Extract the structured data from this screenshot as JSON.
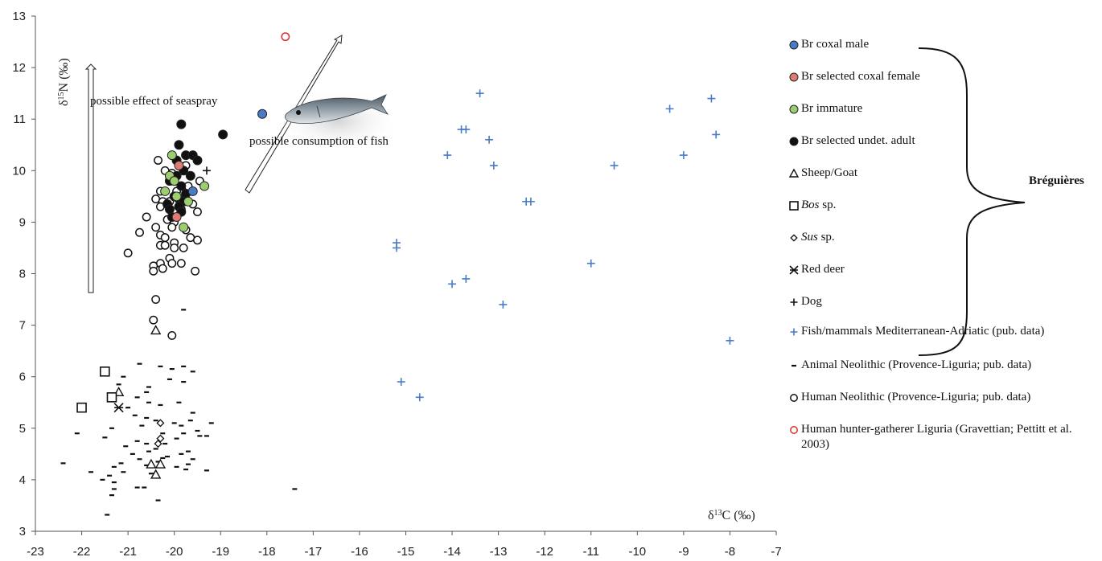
{
  "chart_data": {
    "type": "scatter",
    "xlabel_main": "δ",
    "xlabel_sup": "13",
    "xlabel_rest": "C (‰)",
    "ylabel_main": "δ",
    "ylabel_sup": "15",
    "ylabel_rest": "N (‰)",
    "xlim": [
      -23,
      -7
    ],
    "ylim": [
      3,
      13
    ],
    "xticks": [
      -23,
      -22,
      -21,
      -20,
      -19,
      -18,
      -17,
      -16,
      -15,
      -14,
      -13,
      -12,
      -11,
      -10,
      -9,
      -8,
      -7
    ],
    "yticks": [
      3,
      4,
      5,
      6,
      7,
      8,
      9,
      10,
      11,
      12,
      13
    ],
    "grid": false,
    "legend_position": "right",
    "annotations": {
      "seaspray": "possible effect of seaspray",
      "fish": "possible consumption of fish"
    },
    "group_label": "Bréguières",
    "series": [
      {
        "name": "Br coxal male",
        "marker": "circle-filled",
        "color": "#4a7bc6",
        "points": [
          [
            -18.1,
            11.1
          ],
          [
            -19.6,
            9.6
          ]
        ]
      },
      {
        "name": "Br selected coxal female",
        "marker": "circle-filled",
        "color": "#e07b73",
        "points": [
          [
            -19.9,
            10.1
          ],
          [
            -19.95,
            9.1
          ]
        ]
      },
      {
        "name": "Br immature",
        "marker": "circle-filled",
        "color": "#9ccd6e",
        "points": [
          [
            -20.05,
            10.3
          ],
          [
            -20.1,
            9.9
          ],
          [
            -20.0,
            9.8
          ],
          [
            -20.2,
            9.6
          ],
          [
            -19.35,
            9.7
          ],
          [
            -19.8,
            8.9
          ],
          [
            -19.95,
            9.5
          ],
          [
            -19.7,
            9.4
          ]
        ]
      },
      {
        "name": "Br selected undet. adult",
        "marker": "circle-filled",
        "color": "#111111",
        "points": [
          [
            -19.85,
            10.9
          ],
          [
            -18.95,
            10.7
          ],
          [
            -19.9,
            10.5
          ],
          [
            -19.75,
            10.3
          ],
          [
            -19.6,
            10.3
          ],
          [
            -19.95,
            10.2
          ],
          [
            -19.5,
            10.2
          ],
          [
            -19.8,
            10.0
          ],
          [
            -19.65,
            9.9
          ],
          [
            -19.95,
            9.9
          ],
          [
            -20.1,
            9.8
          ],
          [
            -19.85,
            9.7
          ],
          [
            -19.75,
            9.55
          ],
          [
            -20.0,
            9.5
          ],
          [
            -19.9,
            9.45
          ],
          [
            -19.8,
            9.4
          ],
          [
            -20.15,
            9.35
          ],
          [
            -19.9,
            9.3
          ],
          [
            -20.1,
            9.25
          ],
          [
            -20.05,
            9.1
          ],
          [
            -19.85,
            9.2
          ]
        ]
      },
      {
        "name": "Sheep/Goat",
        "marker": "triangle",
        "color": "#111111",
        "points": [
          [
            -20.4,
            6.9
          ],
          [
            -21.2,
            5.7
          ],
          [
            -20.3,
            4.3
          ],
          [
            -20.5,
            4.3
          ],
          [
            -20.4,
            4.1
          ]
        ]
      },
      {
        "name": "Bos sp.",
        "marker": "square",
        "color": "#111111",
        "points": [
          [
            -21.5,
            6.1
          ],
          [
            -21.35,
            5.6
          ],
          [
            -22.0,
            5.4
          ]
        ]
      },
      {
        "name": "Sus sp.",
        "marker": "diamond",
        "color": "#111111",
        "points": [
          [
            -20.3,
            5.1
          ],
          [
            -20.3,
            4.8
          ],
          [
            -20.35,
            4.7
          ]
        ]
      },
      {
        "name": "Red deer",
        "marker": "star",
        "color": "#111111",
        "points": [
          [
            -21.2,
            5.4
          ]
        ]
      },
      {
        "name": "Dog",
        "marker": "plus",
        "color": "#111111",
        "points": [
          [
            -19.3,
            10.0
          ]
        ]
      },
      {
        "name": "Fish/mammals Mediterranean-Adriatic (pub. data)",
        "marker": "plus",
        "color": "#4a7bc6",
        "points": [
          [
            -13.4,
            11.5
          ],
          [
            -8.4,
            11.4
          ],
          [
            -9.3,
            11.2
          ],
          [
            -13.8,
            10.8
          ],
          [
            -13.7,
            10.8
          ],
          [
            -8.3,
            10.7
          ],
          [
            -13.2,
            10.6
          ],
          [
            -14.1,
            10.3
          ],
          [
            -9.0,
            10.3
          ],
          [
            -13.1,
            10.1
          ],
          [
            -10.5,
            10.1
          ],
          [
            -12.4,
            9.4
          ],
          [
            -12.3,
            9.4
          ],
          [
            -15.2,
            8.6
          ],
          [
            -15.2,
            8.5
          ],
          [
            -11.0,
            8.2
          ],
          [
            -13.7,
            7.9
          ],
          [
            -14.0,
            7.8
          ],
          [
            -12.9,
            7.4
          ],
          [
            -8.0,
            6.7
          ],
          [
            -15.1,
            5.9
          ],
          [
            -14.7,
            5.6
          ]
        ]
      },
      {
        "name": "Animal Neolithic (Provence-Liguria; pub. data)",
        "marker": "dash",
        "color": "#111111",
        "points": [
          [
            -19.8,
            7.3
          ],
          [
            -20.75,
            6.25
          ],
          [
            -20.3,
            6.2
          ],
          [
            -19.8,
            6.2
          ],
          [
            -20.05,
            6.15
          ],
          [
            -19.6,
            6.1
          ],
          [
            -21.1,
            6.0
          ],
          [
            -20.1,
            5.95
          ],
          [
            -19.8,
            5.9
          ],
          [
            -21.2,
            5.85
          ],
          [
            -20.55,
            5.8
          ],
          [
            -20.6,
            5.7
          ],
          [
            -20.8,
            5.6
          ],
          [
            -19.9,
            5.5
          ],
          [
            -20.55,
            5.5
          ],
          [
            -20.3,
            5.45
          ],
          [
            -21.0,
            5.4
          ],
          [
            -19.6,
            5.3
          ],
          [
            -20.85,
            5.25
          ],
          [
            -20.6,
            5.2
          ],
          [
            -19.65,
            5.15
          ],
          [
            -20.4,
            5.15
          ],
          [
            -20.0,
            5.1
          ],
          [
            -19.2,
            5.1
          ],
          [
            -19.85,
            5.05
          ],
          [
            -20.7,
            5.05
          ],
          [
            -21.35,
            5.0
          ],
          [
            -19.5,
            4.95
          ],
          [
            -20.25,
            4.9
          ],
          [
            -19.8,
            4.9
          ],
          [
            -22.1,
            4.9
          ],
          [
            -19.45,
            4.85
          ],
          [
            -19.3,
            4.85
          ],
          [
            -21.5,
            4.82
          ],
          [
            -19.95,
            4.8
          ],
          [
            -20.8,
            4.75
          ],
          [
            -20.2,
            4.7
          ],
          [
            -20.6,
            4.7
          ],
          [
            -21.05,
            4.65
          ],
          [
            -20.4,
            4.6
          ],
          [
            -19.7,
            4.55
          ],
          [
            -20.55,
            4.55
          ],
          [
            -20.9,
            4.5
          ],
          [
            -19.85,
            4.5
          ],
          [
            -20.15,
            4.45
          ],
          [
            -20.75,
            4.4
          ],
          [
            -19.6,
            4.4
          ],
          [
            -20.35,
            4.35
          ],
          [
            -21.15,
            4.32
          ],
          [
            -22.4,
            4.32
          ],
          [
            -20.6,
            4.28
          ],
          [
            -21.3,
            4.25
          ],
          [
            -19.95,
            4.25
          ],
          [
            -19.75,
            4.2
          ],
          [
            -19.3,
            4.18
          ],
          [
            -21.8,
            4.15
          ],
          [
            -21.1,
            4.15
          ],
          [
            -20.5,
            4.12
          ],
          [
            -21.4,
            4.08
          ],
          [
            -21.55,
            4.0
          ],
          [
            -21.3,
            3.95
          ],
          [
            -20.8,
            3.85
          ],
          [
            -20.65,
            3.85
          ],
          [
            -21.3,
            3.82
          ],
          [
            -17.4,
            3.82
          ],
          [
            -21.35,
            3.7
          ],
          [
            -20.35,
            3.6
          ],
          [
            -21.45,
            3.32
          ],
          [
            -20.25,
            4.42
          ],
          [
            -19.7,
            4.3
          ]
        ]
      },
      {
        "name": "Human Neolithic (Provence-Liguria; pub. data)",
        "marker": "circle-open",
        "color": "#111111",
        "points": [
          [
            -20.35,
            10.2
          ],
          [
            -20.2,
            10.0
          ],
          [
            -19.75,
            10.1
          ],
          [
            -20.05,
            9.95
          ],
          [
            -19.45,
            9.8
          ],
          [
            -19.7,
            9.7
          ],
          [
            -20.3,
            9.6
          ],
          [
            -19.95,
            9.6
          ],
          [
            -20.4,
            9.45
          ],
          [
            -20.25,
            9.4
          ],
          [
            -20.1,
            9.4
          ],
          [
            -19.6,
            9.35
          ],
          [
            -20.3,
            9.3
          ],
          [
            -19.85,
            9.25
          ],
          [
            -19.5,
            9.2
          ],
          [
            -20.6,
            9.1
          ],
          [
            -20.15,
            9.05
          ],
          [
            -20.0,
            9.0
          ],
          [
            -20.4,
            8.9
          ],
          [
            -20.05,
            8.9
          ],
          [
            -19.75,
            8.85
          ],
          [
            -20.75,
            8.8
          ],
          [
            -20.3,
            8.75
          ],
          [
            -20.2,
            8.7
          ],
          [
            -19.65,
            8.7
          ],
          [
            -19.5,
            8.65
          ],
          [
            -20.0,
            8.6
          ],
          [
            -20.3,
            8.55
          ],
          [
            -20.2,
            8.55
          ],
          [
            -20.0,
            8.5
          ],
          [
            -19.8,
            8.5
          ],
          [
            -21.0,
            8.4
          ],
          [
            -20.1,
            8.3
          ],
          [
            -19.85,
            8.2
          ],
          [
            -20.45,
            8.15
          ],
          [
            -20.3,
            8.2
          ],
          [
            -20.05,
            8.2
          ],
          [
            -20.25,
            8.1
          ],
          [
            -20.45,
            8.05
          ],
          [
            -19.55,
            8.05
          ],
          [
            -20.4,
            7.5
          ],
          [
            -20.45,
            7.1
          ],
          [
            -20.05,
            6.8
          ]
        ]
      },
      {
        "name": "Human hunter-gatherer Liguria (Gravettian; Pettitt et al. 2003)",
        "marker": "circle-open",
        "color": "#d7322a",
        "points": [
          [
            -17.6,
            12.6
          ]
        ]
      }
    ]
  },
  "legend": {
    "items": [
      {
        "text": "Br coxal male",
        "italic": "",
        "rest": ""
      },
      {
        "text": "Br selected coxal female",
        "italic": "",
        "rest": ""
      },
      {
        "text": "Br immature",
        "italic": "",
        "rest": ""
      },
      {
        "text": "Br selected undet. adult",
        "italic": "",
        "rest": ""
      },
      {
        "text": "Sheep/Goat",
        "italic": "",
        "rest": ""
      },
      {
        "text": "",
        "italic": "Bos",
        "rest": " sp."
      },
      {
        "text": "",
        "italic": "Sus",
        "rest": " sp."
      },
      {
        "text": "Red deer",
        "italic": "",
        "rest": ""
      },
      {
        "text": "Dog",
        "italic": "",
        "rest": ""
      },
      {
        "text": "Fish/mammals Mediterranean-Adriatic (pub. data)",
        "italic": "",
        "rest": ""
      },
      {
        "text": "Animal Neolithic (Provence-Liguria; pub. data)",
        "italic": "",
        "rest": ""
      },
      {
        "text": "Human Neolithic (Provence-Liguria; pub. data)",
        "italic": "",
        "rest": ""
      },
      {
        "text": "Human hunter-gatherer Liguria (Gravettian; Pettitt et al. 2003)",
        "italic": "",
        "rest": ""
      }
    ]
  }
}
